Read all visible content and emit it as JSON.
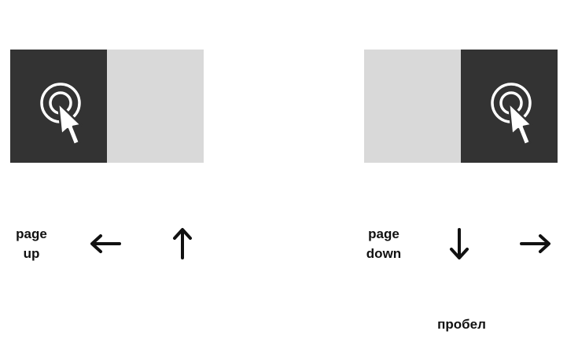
{
  "left_group": {
    "key_label_line1": "page",
    "key_label_line2": "up",
    "arrows": [
      "arrow-left-icon",
      "arrow-up-icon"
    ]
  },
  "right_group": {
    "key_label_line1": "page",
    "key_label_line2": "down",
    "arrows": [
      "arrow-down-icon",
      "arrow-right-icon"
    ],
    "extra_key_label": "пробел"
  },
  "colors": {
    "active_half": "#333333",
    "inactive_half": "#d9d9d9",
    "text": "#111111"
  },
  "icons": {
    "panel_icon": "click-target-cursor-icon"
  }
}
